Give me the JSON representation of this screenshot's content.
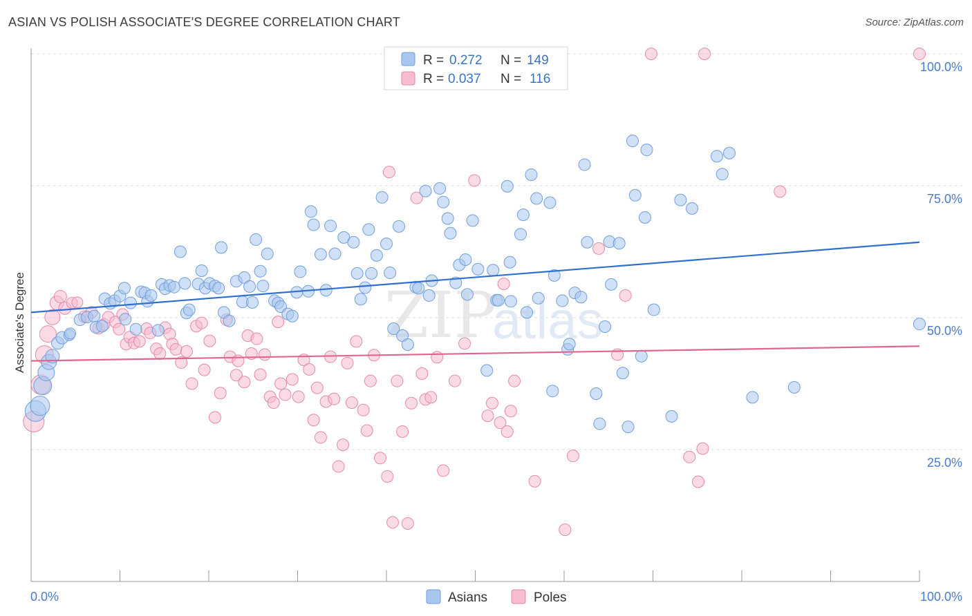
{
  "title": "ASIAN VS POLISH ASSOCIATE'S DEGREE CORRELATION CHART",
  "source": "Source: ZipAtlas.com",
  "watermark": {
    "zip": "ZIP",
    "atlas": "atlas"
  },
  "legend": {
    "asians": {
      "r_label": "R =",
      "r_value": "0.272",
      "n_label": "N =",
      "n_value": "149"
    },
    "poles": {
      "r_label": "R =",
      "r_value": "0.037",
      "n_label": "N =",
      "n_value": "116"
    }
  },
  "colors": {
    "asians_fill": "#a9c6ee",
    "asians_stroke": "#6f9fdc",
    "asians_line": "#2f6fce",
    "poles_fill": "#f6bcd0",
    "poles_stroke": "#e58aaa",
    "poles_line": "#e0668f",
    "grid": "#dedede",
    "axis": "#999999"
  },
  "chart_data": {
    "type": "scatter",
    "title": "ASIAN VS POLISH ASSOCIATE'S DEGREE CORRELATION CHART",
    "xlabel": "",
    "ylabel": "Associate's Degree",
    "xlim": [
      0,
      100
    ],
    "ylim": [
      0,
      102
    ],
    "x_tick_labels": [
      "0.0%",
      "100.0%"
    ],
    "y_ticks": [
      {
        "value": 25,
        "label": "25.0%"
      },
      {
        "value": 50,
        "label": "50.0%"
      },
      {
        "value": 75,
        "label": "75.0%"
      },
      {
        "value": 100,
        "label": "100.0%"
      }
    ],
    "grid": "horizontal dashed",
    "legend_bottom": [
      "Asians",
      "Poles"
    ],
    "series": [
      {
        "name": "Asians",
        "trend": {
          "x": [
            0,
            100
          ],
          "y": [
            51.0,
            64.3
          ]
        },
        "points": [
          [
            0.5,
            32.3
          ],
          [
            1.0,
            33.3
          ],
          [
            1.3,
            37.1
          ],
          [
            1.7,
            39.6
          ],
          [
            2.0,
            41.6
          ],
          [
            2.4,
            42.7
          ],
          [
            3.0,
            45.2
          ],
          [
            3.5,
            46.2
          ],
          [
            4.3,
            46.7
          ],
          [
            4.4,
            47.0
          ],
          [
            5.5,
            49.6
          ],
          [
            6.3,
            50.1
          ],
          [
            7.1,
            50.3
          ],
          [
            7.3,
            48.2
          ],
          [
            8.0,
            48.4
          ],
          [
            8.3,
            53.6
          ],
          [
            8.9,
            52.7
          ],
          [
            9.4,
            53.2
          ],
          [
            10.0,
            54.1
          ],
          [
            10.5,
            55.6
          ],
          [
            10.6,
            49.7
          ],
          [
            11.2,
            52.8
          ],
          [
            11.8,
            47.8
          ],
          [
            12.4,
            54.9
          ],
          [
            12.8,
            54.7
          ],
          [
            13.1,
            53.1
          ],
          [
            13.5,
            54.2
          ],
          [
            14.3,
            47.6
          ],
          [
            14.7,
            56.3
          ],
          [
            15.1,
            55.5
          ],
          [
            15.6,
            56.1
          ],
          [
            16.1,
            55.8
          ],
          [
            16.8,
            62.5
          ],
          [
            17.3,
            56.5
          ],
          [
            17.5,
            50.9
          ],
          [
            17.8,
            51.5
          ],
          [
            18.8,
            56.4
          ],
          [
            19.2,
            58.9
          ],
          [
            19.6,
            55.6
          ],
          [
            20.1,
            56.5
          ],
          [
            20.7,
            56.0
          ],
          [
            21.1,
            55.6
          ],
          [
            21.4,
            63.3
          ],
          [
            21.7,
            51.0
          ],
          [
            22.3,
            49.4
          ],
          [
            23.1,
            56.9
          ],
          [
            23.8,
            53.0
          ],
          [
            24.0,
            57.6
          ],
          [
            24.6,
            55.9
          ],
          [
            24.9,
            52.9
          ],
          [
            25.3,
            64.8
          ],
          [
            25.8,
            58.8
          ],
          [
            26.1,
            56.0
          ],
          [
            26.6,
            62.1
          ],
          [
            27.4,
            53.2
          ],
          [
            27.8,
            52.8
          ],
          [
            28.1,
            52.1
          ],
          [
            28.9,
            50.7
          ],
          [
            29.4,
            50.3
          ],
          [
            29.9,
            54.8
          ],
          [
            30.3,
            58.7
          ],
          [
            31.2,
            55.0
          ],
          [
            31.5,
            70.1
          ],
          [
            31.8,
            67.6
          ],
          [
            32.6,
            62.0
          ],
          [
            33.2,
            55.2
          ],
          [
            33.7,
            67.4
          ],
          [
            34.2,
            62.1
          ],
          [
            35.2,
            65.2
          ],
          [
            36.3,
            64.3
          ],
          [
            36.7,
            58.4
          ],
          [
            37.1,
            53.5
          ],
          [
            37.6,
            55.7
          ],
          [
            38.0,
            66.7
          ],
          [
            38.3,
            58.4
          ],
          [
            38.9,
            61.8
          ],
          [
            39.5,
            72.8
          ],
          [
            40.0,
            64.0
          ],
          [
            40.4,
            58.5
          ],
          [
            40.8,
            47.9
          ],
          [
            41.4,
            67.3
          ],
          [
            41.8,
            46.6
          ],
          [
            42.4,
            44.9
          ],
          [
            43.3,
            55.8
          ],
          [
            43.6,
            55.6
          ],
          [
            44.4,
            74.0
          ],
          [
            44.8,
            54.2
          ],
          [
            45.1,
            57.0
          ],
          [
            46.0,
            74.5
          ],
          [
            46.4,
            71.9
          ],
          [
            46.9,
            68.8
          ],
          [
            47.2,
            66.0
          ],
          [
            47.8,
            56.6
          ],
          [
            48.2,
            60.0
          ],
          [
            48.9,
            61.0
          ],
          [
            49.1,
            54.4
          ],
          [
            49.7,
            68.4
          ],
          [
            50.3,
            59.2
          ],
          [
            51.3,
            40.0
          ],
          [
            52.0,
            59.0
          ],
          [
            52.4,
            53.3
          ],
          [
            52.6,
            53.3
          ],
          [
            53.6,
            74.9
          ],
          [
            53.9,
            60.5
          ],
          [
            54.0,
            53.1
          ],
          [
            55.1,
            65.8
          ],
          [
            55.4,
            69.5
          ],
          [
            55.8,
            51.0
          ],
          [
            56.3,
            77.1
          ],
          [
            56.9,
            72.6
          ],
          [
            57.1,
            53.7
          ],
          [
            58.4,
            71.8
          ],
          [
            58.7,
            36.1
          ],
          [
            58.9,
            58.0
          ],
          [
            59.8,
            53.2
          ],
          [
            60.4,
            44.0
          ],
          [
            60.6,
            45.0
          ],
          [
            61.2,
            54.7
          ],
          [
            61.9,
            53.9
          ],
          [
            62.3,
            79.0
          ],
          [
            62.6,
            64.3
          ],
          [
            63.6,
            35.6
          ],
          [
            64.0,
            29.9
          ],
          [
            64.6,
            48.3
          ],
          [
            65.1,
            64.4
          ],
          [
            65.3,
            56.3
          ],
          [
            66.2,
            64.1
          ],
          [
            66.6,
            39.5
          ],
          [
            67.2,
            29.3
          ],
          [
            67.7,
            83.5
          ],
          [
            68.0,
            73.2
          ],
          [
            68.7,
            42.7
          ],
          [
            69.1,
            69.0
          ],
          [
            69.3,
            81.8
          ],
          [
            70.1,
            51.5
          ],
          [
            72.1,
            31.3
          ],
          [
            73.1,
            72.3
          ],
          [
            74.4,
            70.7
          ],
          [
            77.2,
            80.6
          ],
          [
            77.8,
            77.2
          ],
          [
            78.6,
            81.2
          ],
          [
            81.2,
            34.9
          ],
          [
            85.9,
            36.8
          ],
          [
            100.0,
            48.8
          ]
        ],
        "sizes_large_first": [
          30,
          28,
          26,
          24,
          22,
          20,
          18,
          18,
          16,
          16
        ]
      },
      {
        "name": "Poles",
        "trend": {
          "x": [
            0,
            100
          ],
          "y": [
            41.8,
            44.6
          ]
        },
        "points": [
          [
            0.3,
            30.3
          ],
          [
            1.1,
            37.3
          ],
          [
            1.5,
            43.0
          ],
          [
            1.9,
            46.9
          ],
          [
            2.4,
            50.1
          ],
          [
            2.9,
            52.8
          ],
          [
            3.3,
            54.0
          ],
          [
            3.8,
            51.8
          ],
          [
            4.6,
            52.8
          ],
          [
            5.2,
            52.9
          ],
          [
            6.0,
            50.2
          ],
          [
            6.8,
            51.0
          ],
          [
            7.6,
            48.0
          ],
          [
            8.2,
            48.7
          ],
          [
            8.7,
            50.1
          ],
          [
            9.5,
            49.2
          ],
          [
            9.9,
            47.8
          ],
          [
            10.3,
            50.6
          ],
          [
            10.7,
            45.0
          ],
          [
            11.1,
            46.3
          ],
          [
            11.6,
            45.2
          ],
          [
            12.2,
            45.5
          ],
          [
            13.0,
            47.9
          ],
          [
            13.4,
            47.1
          ],
          [
            14.1,
            44.1
          ],
          [
            14.5,
            43.2
          ],
          [
            15.1,
            48.1
          ],
          [
            15.6,
            46.9
          ],
          [
            15.9,
            45.0
          ],
          [
            16.3,
            44.0
          ],
          [
            16.9,
            41.5
          ],
          [
            17.5,
            43.6
          ],
          [
            18.1,
            37.5
          ],
          [
            18.6,
            48.4
          ],
          [
            19.2,
            49.0
          ],
          [
            19.5,
            40.1
          ],
          [
            20.1,
            45.6
          ],
          [
            20.7,
            31.1
          ],
          [
            21.3,
            35.7
          ],
          [
            22.0,
            49.6
          ],
          [
            22.4,
            42.6
          ],
          [
            23.1,
            39.1
          ],
          [
            23.3,
            41.8
          ],
          [
            24.0,
            37.8
          ],
          [
            24.4,
            46.6
          ],
          [
            24.8,
            43.2
          ],
          [
            25.4,
            46.0
          ],
          [
            25.8,
            39.2
          ],
          [
            26.3,
            43.0
          ],
          [
            26.9,
            35.0
          ],
          [
            27.3,
            33.9
          ],
          [
            27.8,
            49.2
          ],
          [
            28.1,
            37.5
          ],
          [
            28.6,
            35.4
          ],
          [
            29.4,
            38.3
          ],
          [
            30.1,
            35.0
          ],
          [
            30.7,
            42.0
          ],
          [
            31.3,
            40.2
          ],
          [
            31.8,
            30.6
          ],
          [
            32.2,
            36.7
          ],
          [
            32.6,
            27.3
          ],
          [
            33.2,
            34.1
          ],
          [
            33.7,
            42.6
          ],
          [
            34.1,
            34.6
          ],
          [
            34.6,
            21.8
          ],
          [
            35.1,
            25.9
          ],
          [
            35.6,
            41.4
          ],
          [
            36.1,
            33.9
          ],
          [
            36.6,
            45.5
          ],
          [
            37.4,
            32.5
          ],
          [
            37.8,
            28.6
          ],
          [
            38.2,
            38.0
          ],
          [
            38.6,
            42.9
          ],
          [
            39.3,
            23.4
          ],
          [
            40.1,
            19.9
          ],
          [
            40.3,
            77.6
          ],
          [
            40.7,
            11.2
          ],
          [
            41.2,
            38.0
          ],
          [
            41.8,
            28.4
          ],
          [
            42.4,
            11.0
          ],
          [
            42.8,
            33.8
          ],
          [
            43.4,
            72.7
          ],
          [
            44.0,
            39.4
          ],
          [
            44.4,
            34.5
          ],
          [
            45.0,
            34.9
          ],
          [
            45.7,
            42.5
          ],
          [
            46.4,
            21.0
          ],
          [
            47.7,
            38.0
          ],
          [
            48.8,
            45.1
          ],
          [
            49.9,
            76.0
          ],
          [
            51.4,
            31.4
          ],
          [
            51.9,
            33.8
          ],
          [
            52.8,
            30.1
          ],
          [
            53.2,
            56.4
          ],
          [
            53.6,
            28.4
          ],
          [
            54.0,
            32.3
          ],
          [
            54.4,
            38.0
          ],
          [
            56.7,
            19.0
          ],
          [
            60.1,
            9.8
          ],
          [
            61.0,
            23.8
          ],
          [
            63.9,
            63.1
          ],
          [
            66.0,
            43.0
          ],
          [
            66.9,
            54.2
          ],
          [
            69.8,
            100.0
          ],
          [
            74.1,
            23.6
          ],
          [
            75.1,
            18.9
          ],
          [
            75.6,
            25.2
          ],
          [
            75.8,
            100.0
          ],
          [
            84.3,
            73.9
          ],
          [
            100.0,
            100.0
          ]
        ],
        "sizes_large_first": [
          30,
          28,
          26,
          24,
          22,
          20,
          18,
          18,
          16,
          16
        ]
      }
    ]
  }
}
